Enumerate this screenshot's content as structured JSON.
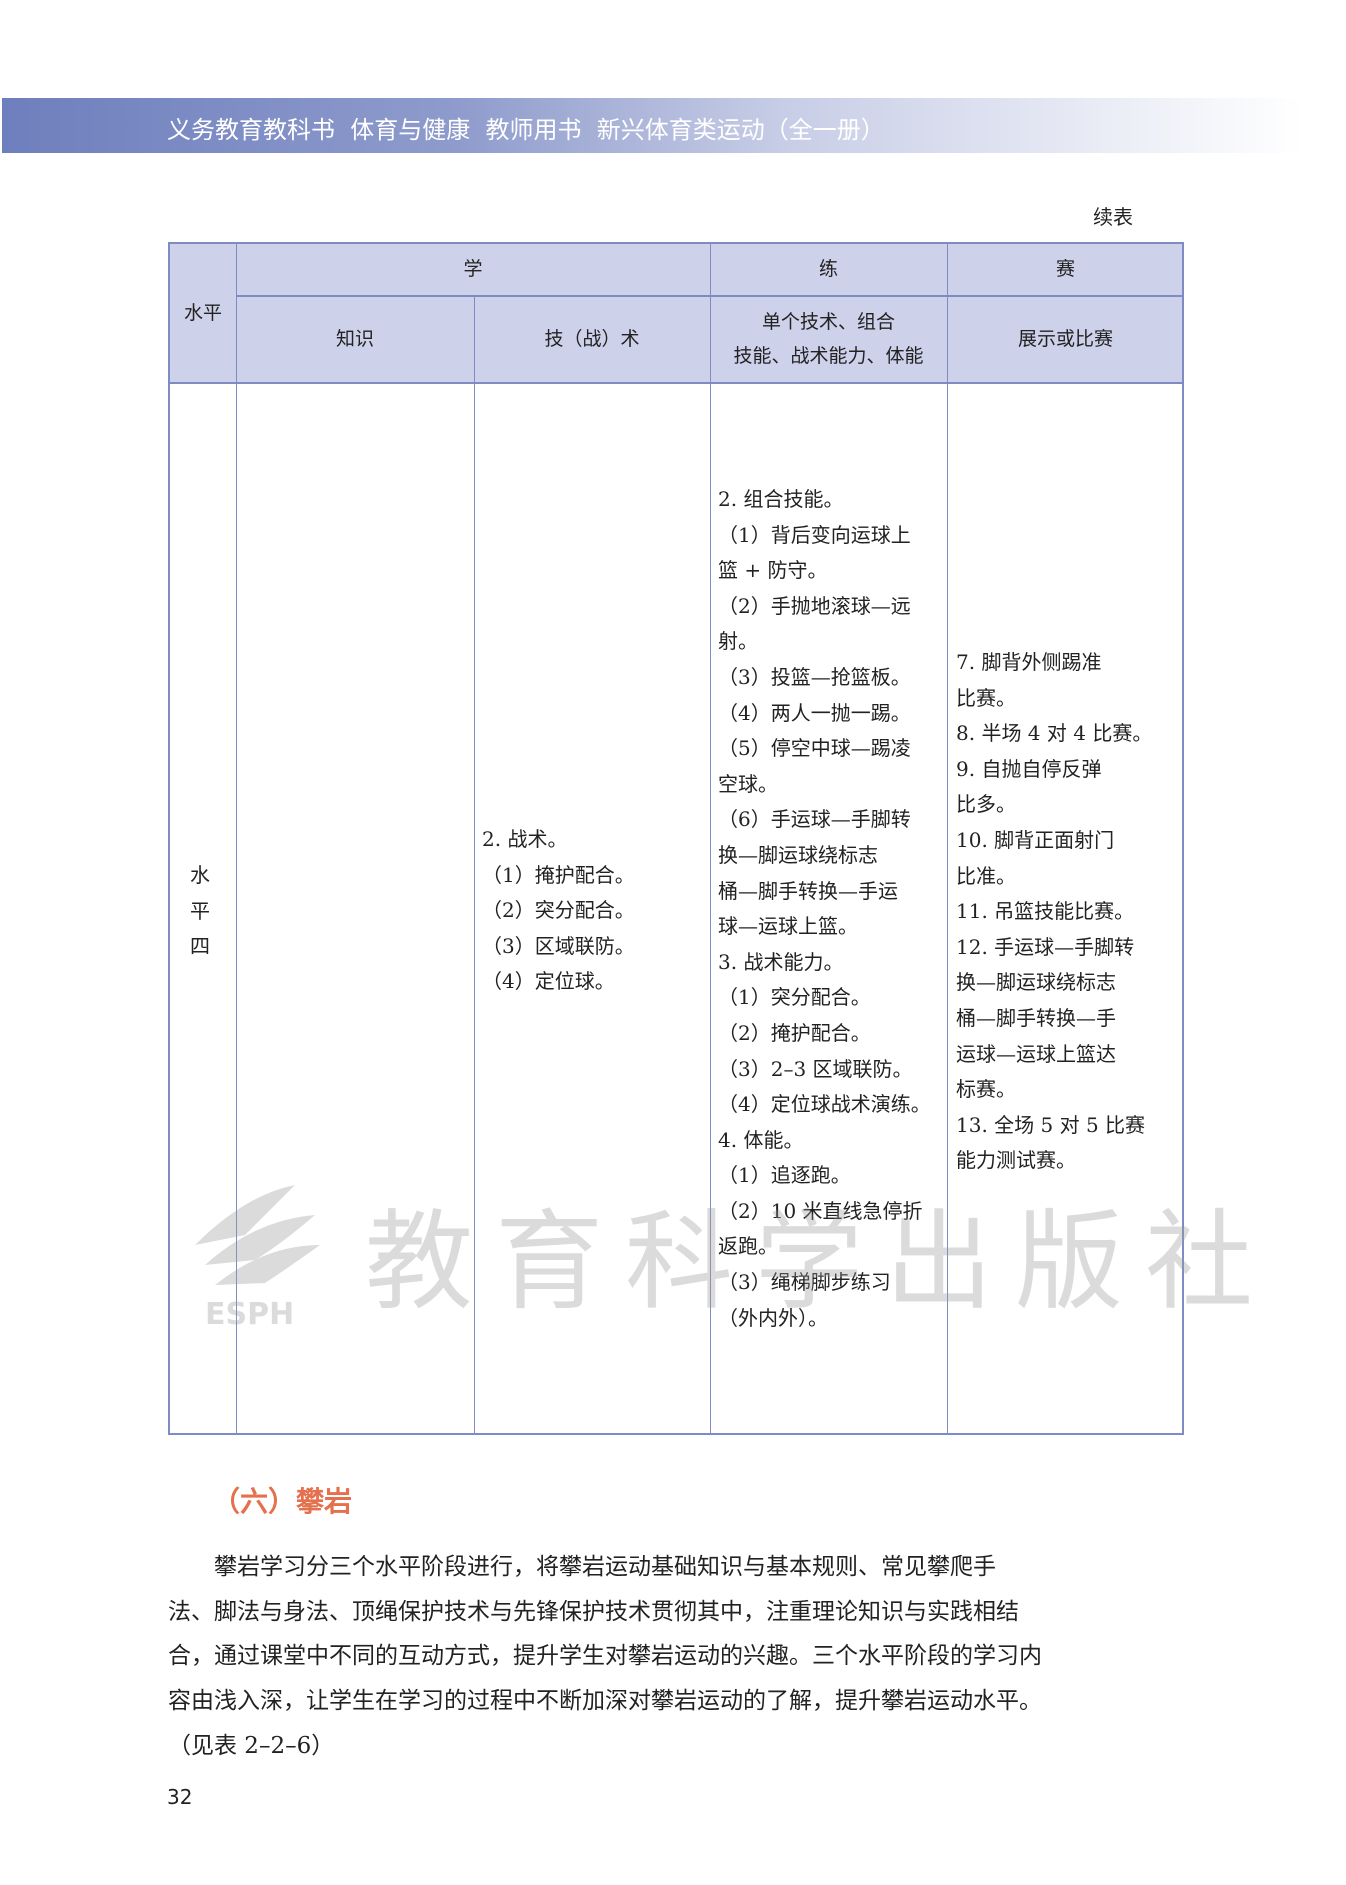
{
  "header": {
    "title": "义务教育教科书  体育与健康  教师用书  新兴体育类运动（全一册）"
  },
  "continued_label": "续表",
  "table": {
    "headers": {
      "level": "水平",
      "learn": "学",
      "practice": "练",
      "compete": "赛",
      "knowledge": "知识",
      "technique": "技（战）术",
      "practice_sub": [
        "单个技术、组合",
        "技能、战术能力、体能"
      ],
      "compete_sub": "展示或比赛"
    },
    "row": {
      "level": [
        "水",
        "平",
        "四"
      ],
      "knowledge": [],
      "technique": [
        "2. 战术。",
        "（1）掩护配合。",
        "（2）突分配合。",
        "（3）区域联防。",
        "（4）定位球。"
      ],
      "practice": [
        "2. 组合技能。",
        "（1）背后变向运球上",
        "篮 + 防守。",
        "（2）手抛地滚球—远",
        "射。",
        "（3）投篮—抢篮板。",
        "（4）两人一抛一踢。",
        "（5）停空中球—踢凌",
        "空球。",
        "（6）手运球—手脚转",
        "换—脚运球绕标志",
        "桶—脚手转换—手运",
        "球—运球上篮。",
        "3. 战术能力。",
        "（1）突分配合。",
        "（2）掩护配合。",
        "（3）2–3 区域联防。",
        "（4）定位球战术演练。",
        "4. 体能。",
        "（1）追逐跑。",
        "（2）10 米直线急停折",
        "返跑。",
        "（3）绳梯脚步练习",
        "（外内外）。"
      ],
      "compete": [
        "7. 脚背外侧踢准",
        "比赛。",
        "8. 半场 4 对 4 比赛。",
        "9. 自抛自停反弹",
        "比多。",
        "10. 脚背正面射门",
        "比准。",
        "11. 吊篮技能比赛。",
        "12. 手运球—手脚转",
        "换—脚运球绕标志",
        "桶—脚手转换—手",
        "运球—运球上篮达",
        "标赛。",
        "13. 全场 5 对 5 比赛",
        "能力测试赛。"
      ]
    }
  },
  "watermark": {
    "text": "教育科学出版社",
    "logo": "ESPH"
  },
  "section": {
    "heading": "（六）攀岩",
    "paragraph": [
      "　　攀岩学习分三个水平阶段进行，将攀岩运动基础知识与基本规则、常见攀爬手",
      "法、脚法与身法、顶绳保护技术与先锋保护技术贯彻其中，注重理论知识与实践相结",
      "合，通过课堂中不同的互动方式，提升学生对攀岩运动的兴趣。三个水平阶段的学习内",
      "容由浅入深，让学生在学习的过程中不断加深对攀岩运动的了解，提升攀岩运动水平。",
      "（见表 2–2–6）"
    ]
  },
  "page_number": "32",
  "colors": {
    "header_bar": "#6e7fbd",
    "table_header": "#cdd1ea",
    "table_border": "#7f8cc4",
    "section_heading": "#e5704d"
  }
}
